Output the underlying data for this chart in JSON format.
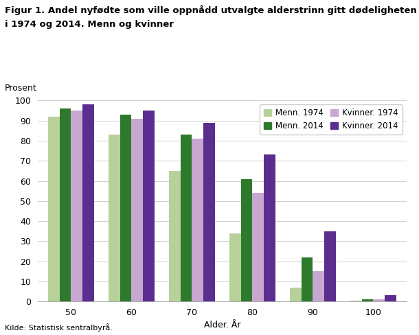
{
  "title_line1": "Figur 1. Andel nyfødte som ville oppnådd utvalgte alderstrinn gitt dødeligheten",
  "title_line2": "i 1974 og 2014. Menn og kvinner",
  "ylabel": "Prosent",
  "xlabel": "Alder. År",
  "categories": [
    "50",
    "60",
    "70",
    "80",
    "90",
    "100"
  ],
  "series": {
    "Menn. 1974": [
      92,
      83,
      65,
      34,
      7,
      0.5
    ],
    "Menn. 2014": [
      96,
      93,
      83,
      61,
      22,
      1
    ],
    "Kvinner. 1974": [
      95,
      91,
      81,
      54,
      15,
      1
    ],
    "Kvinner. 2014": [
      98,
      95,
      89,
      73,
      35,
      3
    ]
  },
  "colors": {
    "Menn. 1974": "#b8d09a",
    "Menn. 2014": "#2d7a2d",
    "Kvinner. 1974": "#c8a8d0",
    "Kvinner. 2014": "#5b2d8e"
  },
  "ylim": [
    0,
    100
  ],
  "yticks": [
    0,
    10,
    20,
    30,
    40,
    50,
    60,
    70,
    80,
    90,
    100
  ],
  "footnote": "Kilde: Statistisk sentralbyrå.",
  "bar_width": 0.19,
  "legend_order": [
    "Menn. 1974",
    "Menn. 2014",
    "Kvinner. 1974",
    "Kvinner. 2014"
  ]
}
